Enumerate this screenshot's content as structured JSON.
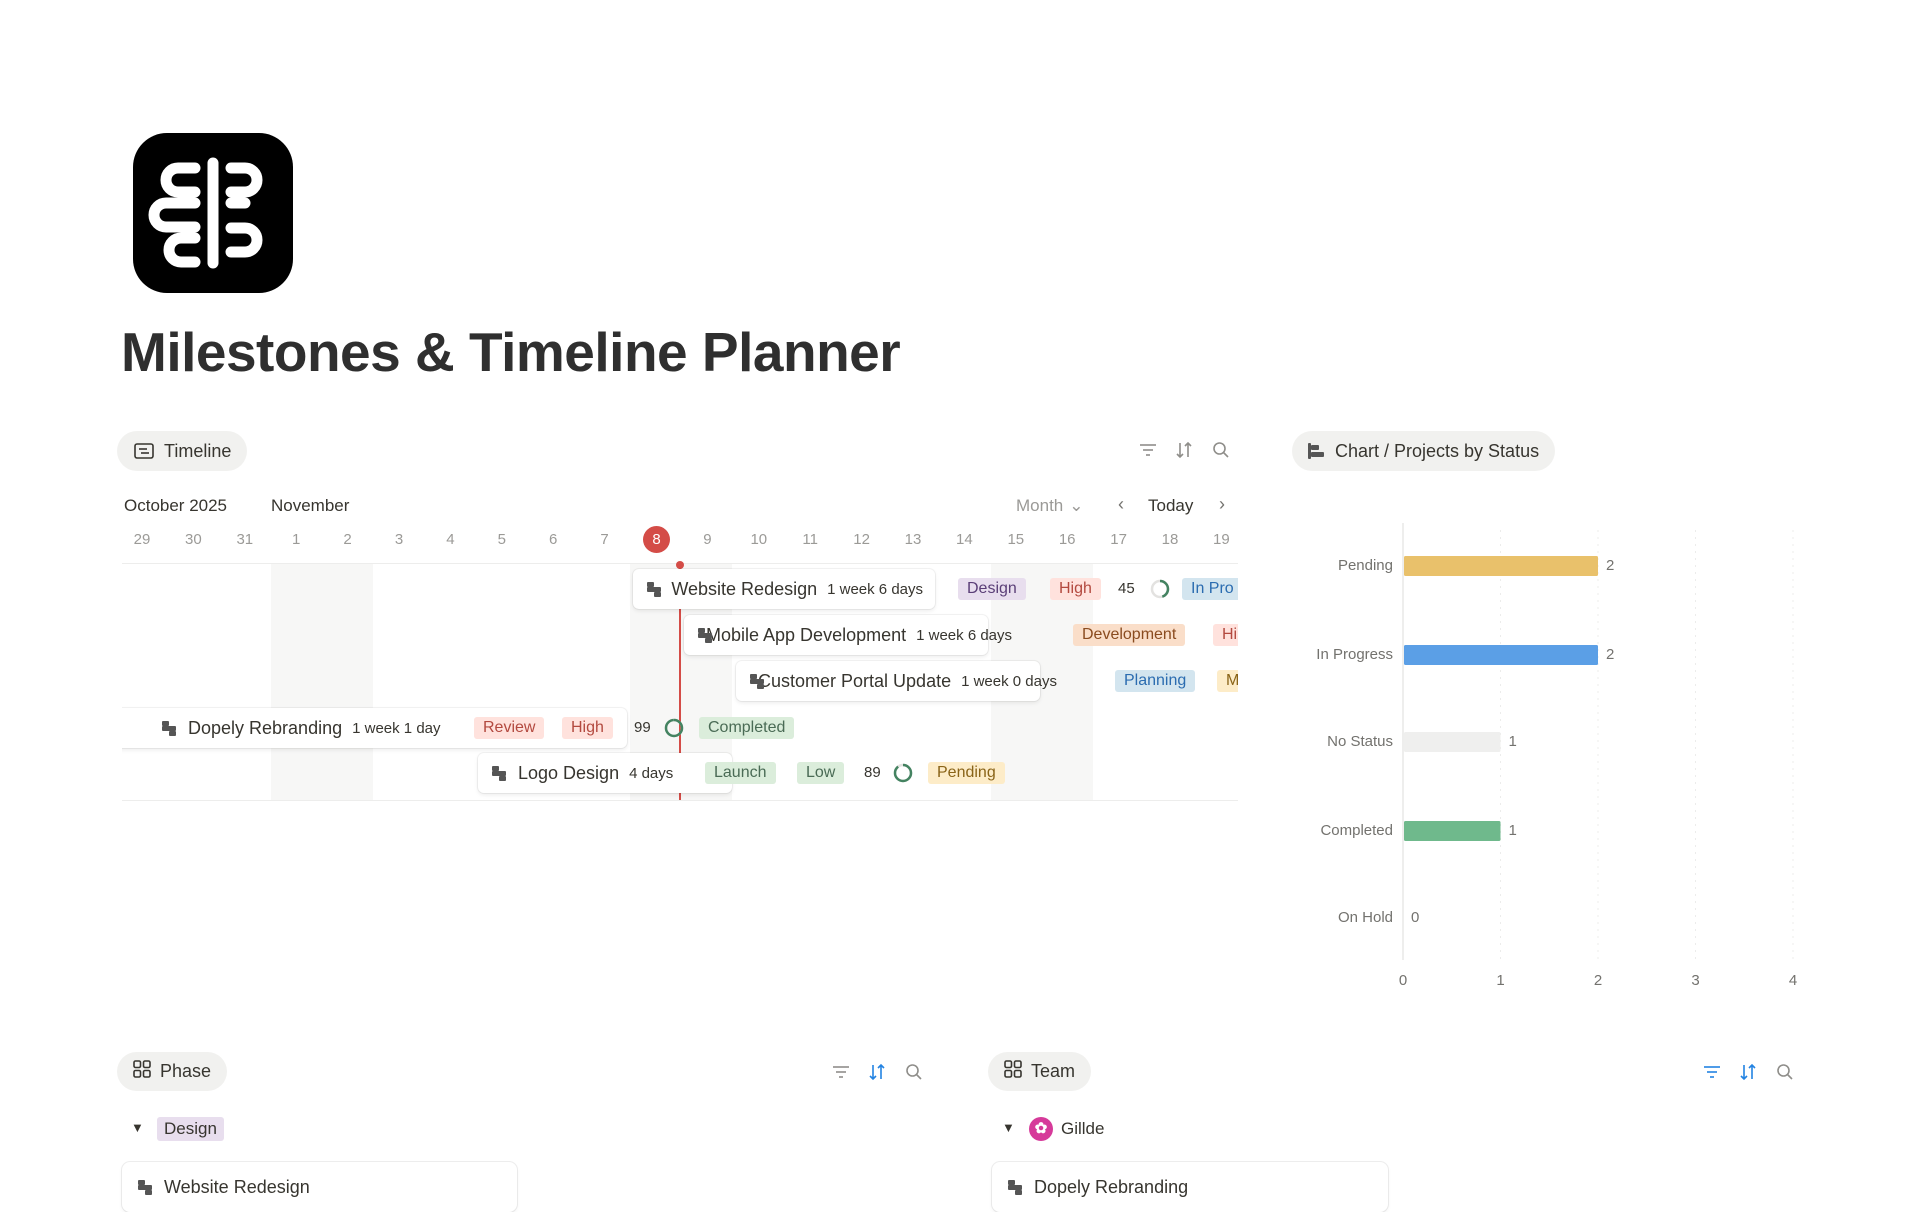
{
  "page": {
    "title": "Milestones & Timeline Planner"
  },
  "timeline": {
    "view_label": "Timeline",
    "month_current": "October 2025",
    "month_next": "November",
    "scale": "Month",
    "today_label": "Today",
    "days": [
      "29",
      "30",
      "31",
      "1",
      "2",
      "3",
      "4",
      "5",
      "6",
      "7",
      "8",
      "9",
      "10",
      "11",
      "12",
      "13",
      "14",
      "15",
      "16",
      "17",
      "18",
      "19"
    ],
    "today_day": "8",
    "rows": [
      {
        "name": "Website Redesign",
        "duration": "1 week 6 days",
        "phase": "Design",
        "priority": "High",
        "progress": "45",
        "progress_value": 45,
        "status": "In Pro"
      },
      {
        "name": "Mobile App Development",
        "duration": "1 week 6 days",
        "phase": "Development",
        "priority": "Hi"
      },
      {
        "name": "Customer Portal Update",
        "duration": "1 week 0 days",
        "phase": "Planning",
        "priority": "M"
      },
      {
        "name": "Dopely Rebranding",
        "duration": "1 week 1 day",
        "phase": "Review",
        "priority": "High",
        "progress": "99",
        "progress_value": 99,
        "status": "Completed"
      },
      {
        "name": "Logo Design",
        "duration": "4 days",
        "phase": "Launch",
        "priority": "Low",
        "progress": "89",
        "progress_value": 89,
        "status": "Pending"
      }
    ]
  },
  "chart_view": {
    "label": "Chart / Projects by Status"
  },
  "chart_data": {
    "type": "bar",
    "orientation": "horizontal",
    "categories": [
      "Pending",
      "In Progress",
      "No Status",
      "Completed",
      "On Hold"
    ],
    "values": [
      2,
      2,
      1,
      1,
      0
    ],
    "colors": [
      "#E9C16B",
      "#5B9FE6",
      "#EFEFEE",
      "#6FB98C",
      "#cccccc"
    ],
    "xlim": [
      0,
      4
    ],
    "xticks": [
      "0",
      "1",
      "2",
      "3",
      "4"
    ],
    "grid": true
  },
  "phase": {
    "label": "Phase",
    "group": "Design",
    "card": "Website Redesign"
  },
  "team": {
    "label": "Team",
    "group": "Gillde",
    "card": "Dopely Rebranding"
  },
  "colors": {
    "today": "#d44c47",
    "ring": "#448361",
    "accent_blue": "#2383e2"
  }
}
